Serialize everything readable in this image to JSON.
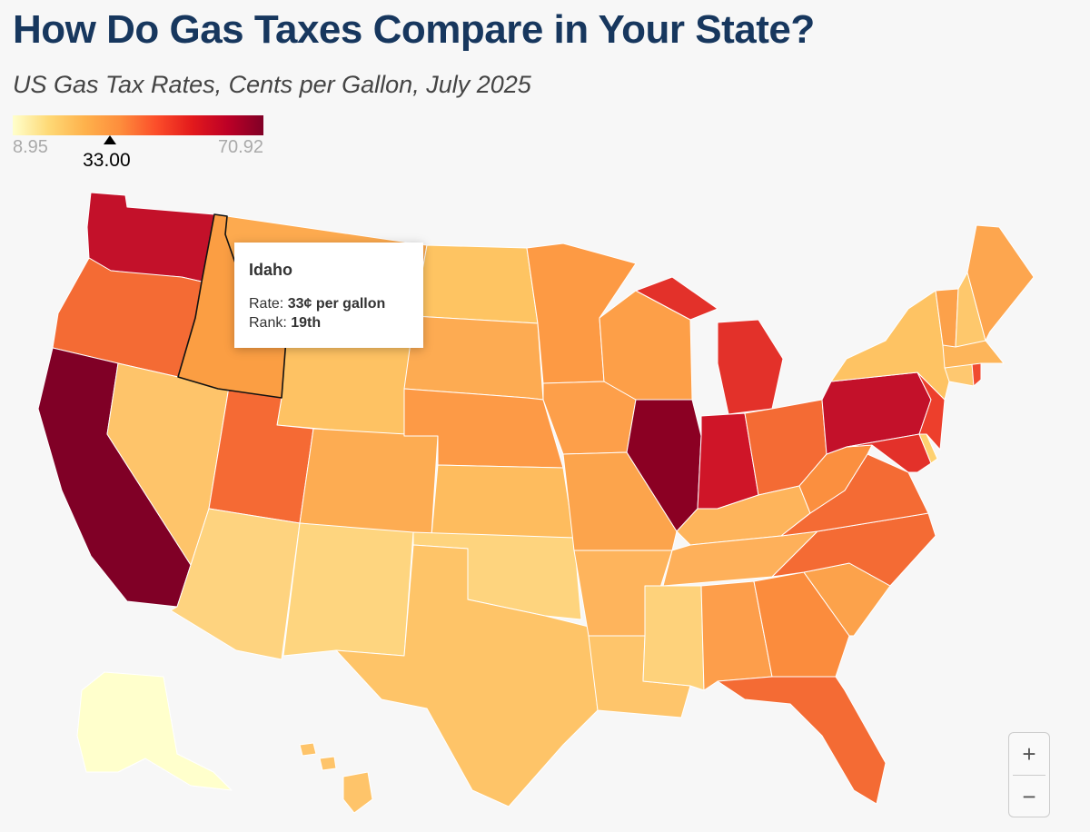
{
  "header": {
    "title": "How Do Gas Taxes Compare in Your State?",
    "subtitle": "US Gas Tax Rates, Cents per Gallon, July 2025"
  },
  "legend": {
    "min_label": "8.95",
    "max_label": "70.92",
    "min_value": 8.95,
    "max_value": 70.92,
    "marker_value": 33.0,
    "marker_label": "33.00",
    "colors": [
      "#ffffcc",
      "#fed976",
      "#feb24c",
      "#fd8d3c",
      "#fc4e2a",
      "#e31a1c",
      "#bd0026",
      "#800026"
    ]
  },
  "tooltip": {
    "state": "Idaho",
    "rate_label": "Rate: ",
    "rate_value": "33¢ per gallon",
    "rank_label": "Rank: ",
    "rank_value": "19th"
  },
  "zoom": {
    "in_label": "+",
    "out_label": "−"
  },
  "map_data": {
    "type": "choropleth",
    "selected": "Idaho",
    "states": [
      {
        "name": "Washington",
        "color": "#c3112a"
      },
      {
        "name": "Oregon",
        "color": "#f46b34"
      },
      {
        "name": "California",
        "color": "#800026"
      },
      {
        "name": "Idaho",
        "color": "#fb9e43"
      },
      {
        "name": "Nevada",
        "color": "#fec46a"
      },
      {
        "name": "Montana",
        "color": "#fdaa4f"
      },
      {
        "name": "Wyoming",
        "color": "#fec263"
      },
      {
        "name": "Utah",
        "color": "#f56a34"
      },
      {
        "name": "Arizona",
        "color": "#fed37f"
      },
      {
        "name": "Colorado",
        "color": "#fdac52"
      },
      {
        "name": "New Mexico",
        "color": "#fed57f"
      },
      {
        "name": "North Dakota",
        "color": "#fec462"
      },
      {
        "name": "South Dakota",
        "color": "#fdab52"
      },
      {
        "name": "Nebraska",
        "color": "#fd9a46"
      },
      {
        "name": "Kansas",
        "color": "#febc5e"
      },
      {
        "name": "Oklahoma",
        "color": "#fed47e"
      },
      {
        "name": "Texas",
        "color": "#fec468"
      },
      {
        "name": "Minnesota",
        "color": "#fd9a44"
      },
      {
        "name": "Iowa",
        "color": "#fd9f4a"
      },
      {
        "name": "Missouri",
        "color": "#fca44c"
      },
      {
        "name": "Arkansas",
        "color": "#feb45c"
      },
      {
        "name": "Louisiana",
        "color": "#fec56b"
      },
      {
        "name": "Wisconsin",
        "color": "#fd9f48"
      },
      {
        "name": "Illinois",
        "color": "#8b0023"
      },
      {
        "name": "Michigan",
        "color": "#e3312a"
      },
      {
        "name": "Indiana",
        "color": "#cf1528"
      },
      {
        "name": "Ohio",
        "color": "#f46b34"
      },
      {
        "name": "Kentucky",
        "color": "#feb45b"
      },
      {
        "name": "Tennessee",
        "color": "#feb05a"
      },
      {
        "name": "Mississippi",
        "color": "#fed27b"
      },
      {
        "name": "Alabama",
        "color": "#fd9e4b"
      },
      {
        "name": "Georgia",
        "color": "#fb8c3d"
      },
      {
        "name": "Florida",
        "color": "#f46b34"
      },
      {
        "name": "South Carolina",
        "color": "#fca24b"
      },
      {
        "name": "North Carolina",
        "color": "#f46b34"
      },
      {
        "name": "Virginia",
        "color": "#f46b34"
      },
      {
        "name": "West Virginia",
        "color": "#fb8f3f"
      },
      {
        "name": "Pennsylvania",
        "color": "#c3112a"
      },
      {
        "name": "New York",
        "color": "#fec363"
      },
      {
        "name": "Vermont",
        "color": "#fca14a"
      },
      {
        "name": "New Hampshire",
        "color": "#fec86c"
      },
      {
        "name": "Maine",
        "color": "#fda64f"
      },
      {
        "name": "Massachusetts",
        "color": "#fdb55a"
      },
      {
        "name": "Rhode Island",
        "color": "#f04a30"
      },
      {
        "name": "Connecticut",
        "color": "#fec870"
      },
      {
        "name": "New Jersey",
        "color": "#ed3f2c"
      },
      {
        "name": "Delaware",
        "color": "#fed170"
      },
      {
        "name": "Maryland",
        "color": "#e3312a"
      },
      {
        "name": "Alaska",
        "color": "#ffffcc"
      },
      {
        "name": "Hawaii",
        "color": "#fec46a"
      }
    ]
  }
}
